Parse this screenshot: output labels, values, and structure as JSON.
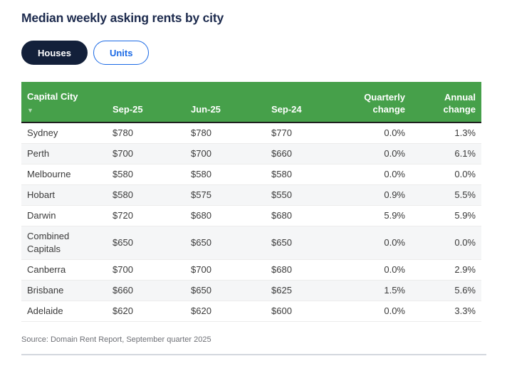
{
  "title": "Median weekly asking rents by city",
  "toggle": {
    "houses_label": "Houses",
    "units_label": "Units"
  },
  "table_meta": {
    "sort_indicator": "▼"
  },
  "chart_data": {
    "type": "table",
    "title": "Median weekly asking rents by city",
    "columns": [
      "Capital City",
      "Sep-25",
      "Jun-25",
      "Sep-24",
      "Quarterly change",
      "Annual change"
    ],
    "rows": [
      [
        "Sydney",
        "$780",
        "$780",
        "$770",
        "0.0%",
        "1.3%"
      ],
      [
        "Perth",
        "$700",
        "$700",
        "$660",
        "0.0%",
        "6.1%"
      ],
      [
        "Melbourne",
        "$580",
        "$580",
        "$580",
        "0.0%",
        "0.0%"
      ],
      [
        "Hobart",
        "$580",
        "$575",
        "$550",
        "0.9%",
        "5.5%"
      ],
      [
        "Darwin",
        "$720",
        "$680",
        "$680",
        "5.9%",
        "5.9%"
      ],
      [
        "Combined Capitals",
        "$650",
        "$650",
        "$650",
        "0.0%",
        "0.0%"
      ],
      [
        "Canberra",
        "$700",
        "$700",
        "$680",
        "0.0%",
        "2.9%"
      ],
      [
        "Brisbane",
        "$660",
        "$650",
        "$625",
        "1.5%",
        "5.6%"
      ],
      [
        "Adelaide",
        "$620",
        "$620",
        "$600",
        "0.0%",
        "3.3%"
      ]
    ]
  },
  "source": "Source: Domain Rent Report, September quarter 2025",
  "colors": {
    "header_green": "#46a04a",
    "active_tab_navy": "#13203a",
    "link_blue": "#1a69e5",
    "title_navy": "#1c2a4d",
    "row_stripe": "#f5f6f7",
    "header_rule_dark": "#1f1f1f"
  }
}
